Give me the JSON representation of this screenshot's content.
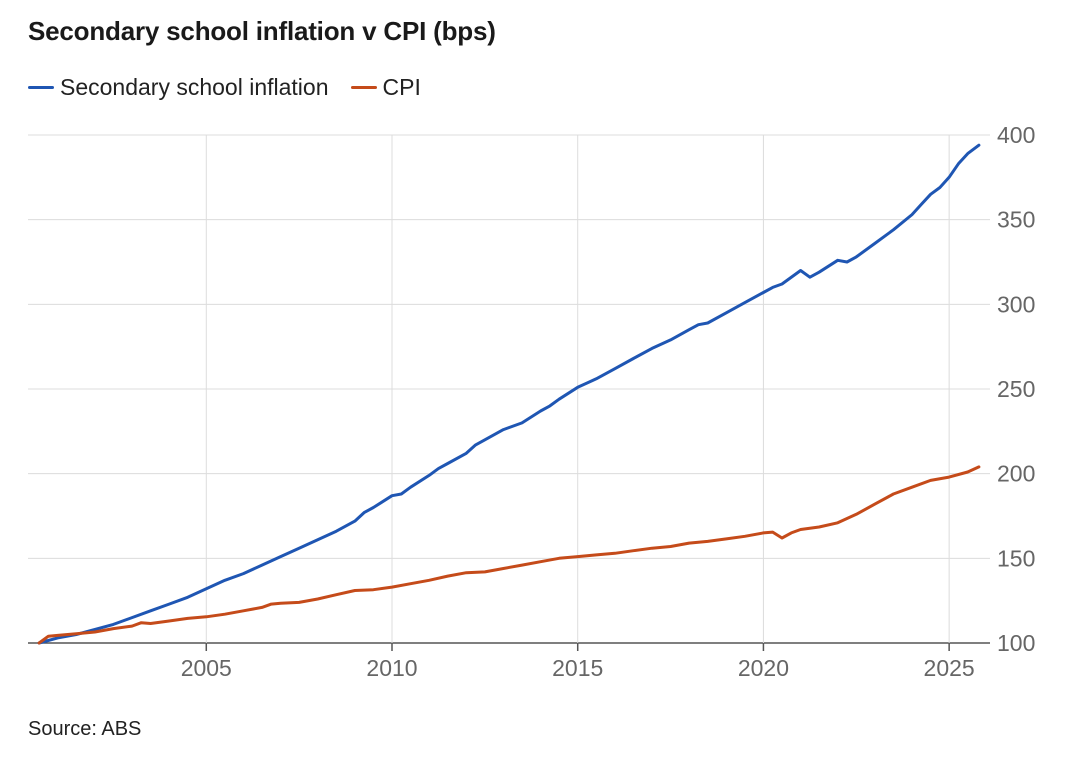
{
  "header": {
    "title": "Secondary school inflation v CPI (bps)"
  },
  "footer": {
    "source": "Source: ABS"
  },
  "chart_data": {
    "type": "line",
    "title": "Secondary school inflation v CPI (bps)",
    "xlabel": "",
    "ylabel": "",
    "xlim": [
      2000.2,
      2026.1
    ],
    "ylim": [
      100,
      400
    ],
    "y_ticks": [
      100,
      150,
      200,
      250,
      300,
      350,
      400
    ],
    "x_ticks": [
      2005,
      2010,
      2015,
      2020,
      2025
    ],
    "y_axis_position": "right",
    "grid": true,
    "legend_position": "top-left",
    "series": [
      {
        "name": "Secondary school inflation",
        "color": "#1f56b3",
        "points": [
          [
            2000.5,
            100
          ],
          [
            2001.0,
            103
          ],
          [
            2001.5,
            105
          ],
          [
            2002.0,
            108
          ],
          [
            2002.5,
            111
          ],
          [
            2003.0,
            115
          ],
          [
            2003.5,
            119
          ],
          [
            2004.0,
            123
          ],
          [
            2004.5,
            127
          ],
          [
            2005.0,
            132
          ],
          [
            2005.5,
            137
          ],
          [
            2006.0,
            141
          ],
          [
            2006.5,
            146
          ],
          [
            2007.0,
            151
          ],
          [
            2007.5,
            156
          ],
          [
            2008.0,
            161
          ],
          [
            2008.5,
            166
          ],
          [
            2009.0,
            172
          ],
          [
            2009.25,
            177
          ],
          [
            2009.5,
            180
          ],
          [
            2010.0,
            187
          ],
          [
            2010.25,
            188
          ],
          [
            2010.5,
            192
          ],
          [
            2011.0,
            199
          ],
          [
            2011.25,
            203
          ],
          [
            2011.5,
            206
          ],
          [
            2012.0,
            212
          ],
          [
            2012.25,
            217
          ],
          [
            2012.5,
            220
          ],
          [
            2013.0,
            226
          ],
          [
            2013.5,
            230
          ],
          [
            2014.0,
            237
          ],
          [
            2014.25,
            240
          ],
          [
            2014.5,
            244
          ],
          [
            2015.0,
            251
          ],
          [
            2015.5,
            256
          ],
          [
            2016.0,
            262
          ],
          [
            2016.5,
            268
          ],
          [
            2017.0,
            274
          ],
          [
            2017.5,
            279
          ],
          [
            2018.0,
            285
          ],
          [
            2018.25,
            288
          ],
          [
            2018.5,
            289
          ],
          [
            2019.0,
            295
          ],
          [
            2019.5,
            301
          ],
          [
            2020.0,
            307
          ],
          [
            2020.25,
            310
          ],
          [
            2020.5,
            312
          ],
          [
            2021.0,
            320
          ],
          [
            2021.25,
            316
          ],
          [
            2021.5,
            319
          ],
          [
            2022.0,
            326
          ],
          [
            2022.25,
            325
          ],
          [
            2022.5,
            328
          ],
          [
            2023.0,
            336
          ],
          [
            2023.5,
            344
          ],
          [
            2024.0,
            353
          ],
          [
            2024.25,
            359
          ],
          [
            2024.5,
            365
          ],
          [
            2024.75,
            369
          ],
          [
            2025.0,
            375
          ],
          [
            2025.25,
            383
          ],
          [
            2025.5,
            389
          ],
          [
            2025.8,
            394
          ]
        ]
      },
      {
        "name": "CPI",
        "color": "#c54b1a",
        "points": [
          [
            2000.5,
            100
          ],
          [
            2000.75,
            104
          ],
          [
            2001.0,
            104.5
          ],
          [
            2001.5,
            105.5
          ],
          [
            2002.0,
            106.5
          ],
          [
            2002.5,
            108.5
          ],
          [
            2003.0,
            110
          ],
          [
            2003.25,
            112
          ],
          [
            2003.5,
            111.5
          ],
          [
            2004.0,
            113
          ],
          [
            2004.5,
            114.5
          ],
          [
            2005.0,
            115.5
          ],
          [
            2005.5,
            117
          ],
          [
            2006.0,
            119
          ],
          [
            2006.5,
            121
          ],
          [
            2006.75,
            123
          ],
          [
            2007.0,
            123.5
          ],
          [
            2007.5,
            124
          ],
          [
            2008.0,
            126
          ],
          [
            2008.5,
            128.5
          ],
          [
            2009.0,
            131
          ],
          [
            2009.5,
            131.5
          ],
          [
            2010.0,
            133
          ],
          [
            2010.5,
            135
          ],
          [
            2011.0,
            137
          ],
          [
            2011.5,
            139.5
          ],
          [
            2012.0,
            141.5
          ],
          [
            2012.5,
            142
          ],
          [
            2013.0,
            144
          ],
          [
            2013.5,
            146
          ],
          [
            2014.0,
            148
          ],
          [
            2014.5,
            150
          ],
          [
            2015.0,
            151
          ],
          [
            2015.5,
            152
          ],
          [
            2016.0,
            153
          ],
          [
            2016.5,
            154.5
          ],
          [
            2017.0,
            156
          ],
          [
            2017.5,
            157
          ],
          [
            2018.0,
            159
          ],
          [
            2018.5,
            160
          ],
          [
            2019.0,
            161.5
          ],
          [
            2019.5,
            163
          ],
          [
            2020.0,
            165
          ],
          [
            2020.25,
            165.5
          ],
          [
            2020.5,
            162
          ],
          [
            2020.75,
            165
          ],
          [
            2021.0,
            167
          ],
          [
            2021.5,
            168.5
          ],
          [
            2022.0,
            171
          ],
          [
            2022.5,
            176
          ],
          [
            2023.0,
            182
          ],
          [
            2023.5,
            188
          ],
          [
            2024.0,
            192
          ],
          [
            2024.5,
            196
          ],
          [
            2025.0,
            198
          ],
          [
            2025.5,
            201
          ],
          [
            2025.8,
            204
          ]
        ]
      }
    ]
  }
}
